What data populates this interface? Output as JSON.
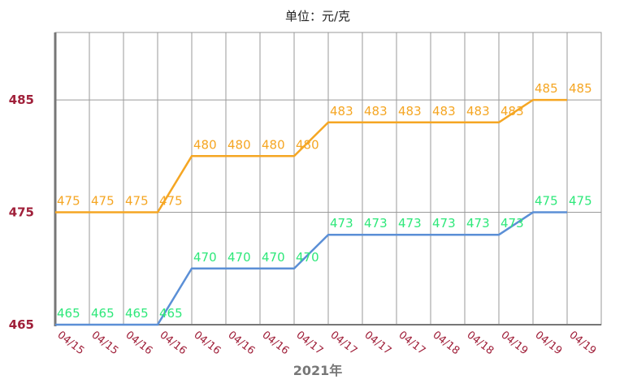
{
  "chart_data": {
    "type": "line",
    "title": "单位：元/克",
    "xlabel": "2021年",
    "ylabel": "",
    "categories": [
      "04/15",
      "04/15",
      "04/16",
      "04/16",
      "04/16",
      "04/16",
      "04/16",
      "04/17",
      "04/17",
      "04/17",
      "04/17",
      "04/18",
      "04/18",
      "04/19",
      "04/19",
      "04/19"
    ],
    "y_ticks": [
      "465",
      "475",
      "485"
    ],
    "ylim": [
      465,
      491
    ],
    "grid": true,
    "series": [
      {
        "color": "#f5a623",
        "label_color": "#f5a623",
        "values": [
          475,
          475,
          475,
          475,
          480,
          480,
          480,
          480,
          483,
          483,
          483,
          483,
          483,
          483,
          485,
          485
        ],
        "labels": [
          "475",
          "475",
          "475",
          "475",
          "480",
          "480",
          "480",
          "480",
          "483",
          "483",
          "483",
          "483",
          "483",
          "483",
          "485",
          "485"
        ]
      },
      {
        "color": "#5b8fd6",
        "label_color": "#2ee87a",
        "values": [
          465,
          465,
          465,
          465,
          470,
          470,
          470,
          470,
          473,
          473,
          473,
          473,
          473,
          473,
          475,
          475
        ],
        "labels": [
          "465",
          "465",
          "465",
          "465",
          "470",
          "470",
          "470",
          "470",
          "473",
          "473",
          "473",
          "473",
          "473",
          "473",
          "475",
          "475"
        ]
      }
    ]
  }
}
